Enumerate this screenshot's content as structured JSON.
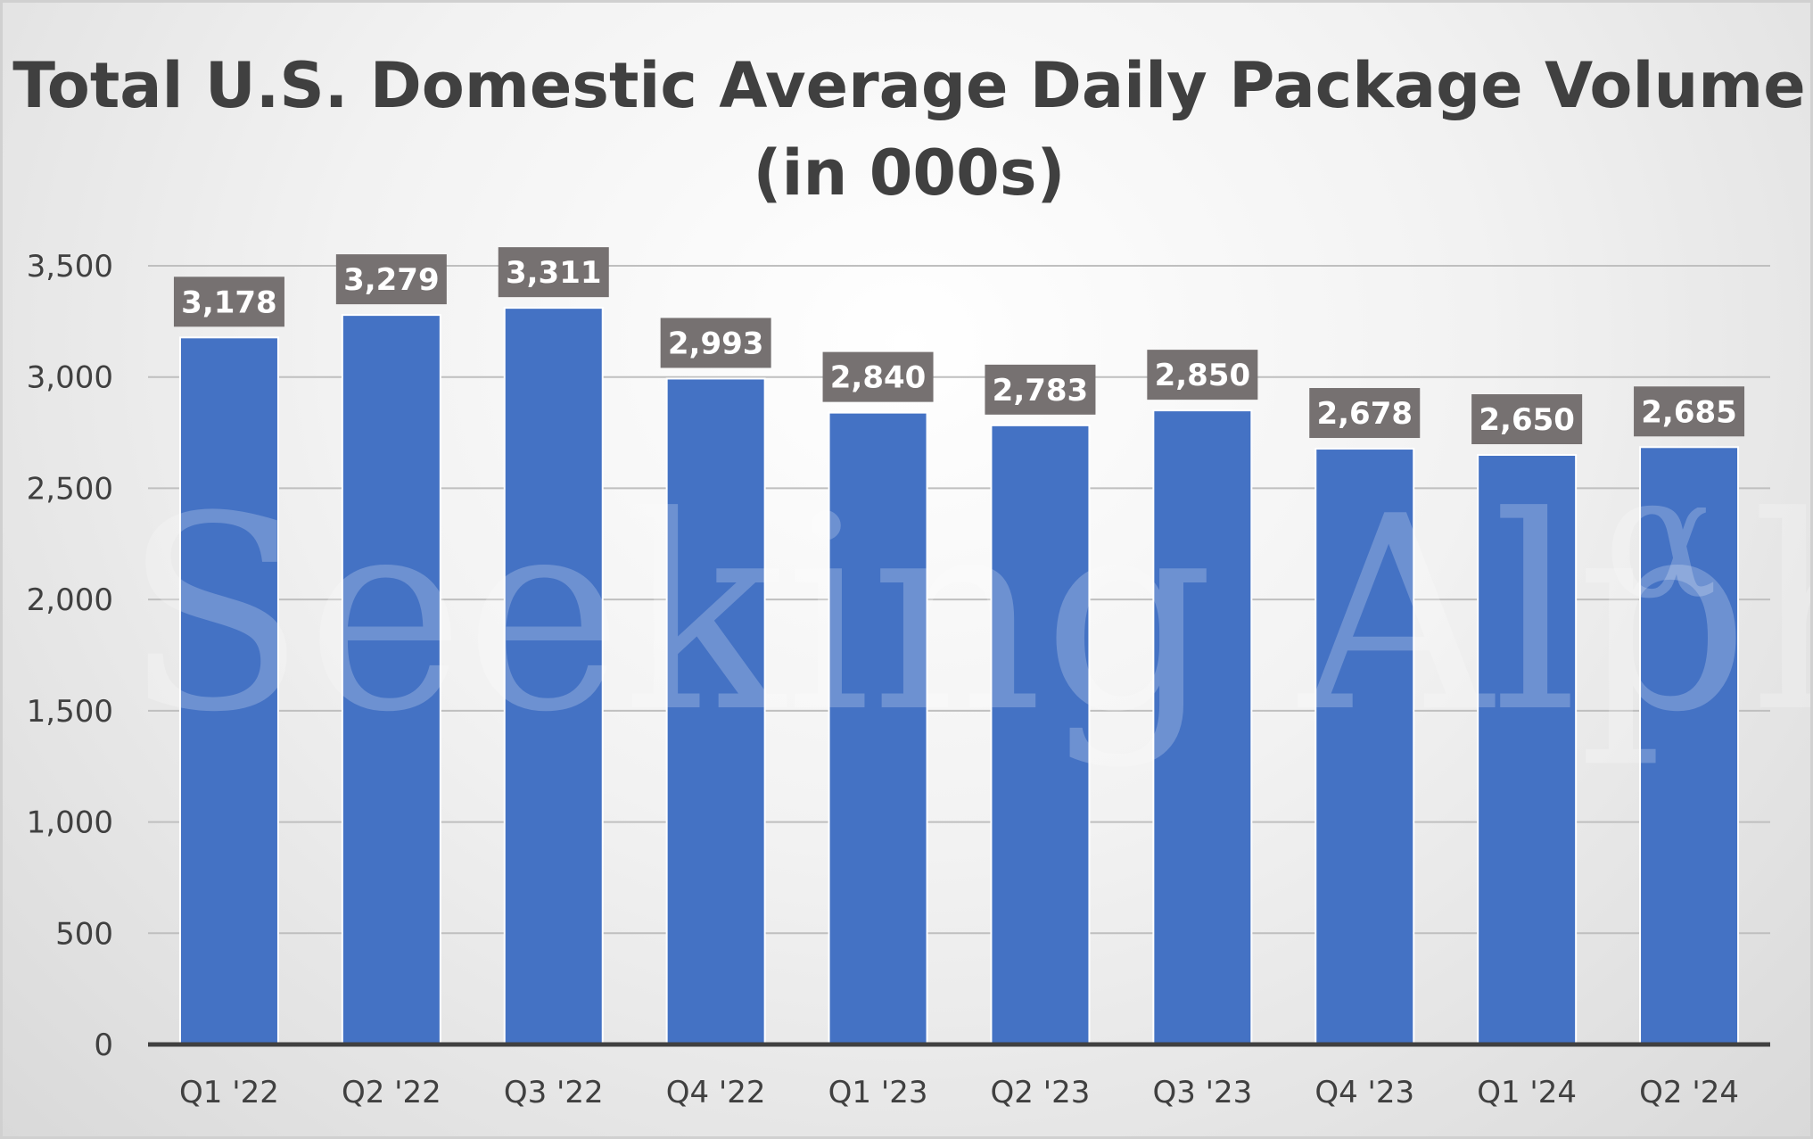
{
  "chart_data": {
    "type": "bar",
    "title": "Total U.S. Domestic Average Daily Package Volume (in 000s)",
    "categories": [
      "Q1 '22",
      "Q2 '22",
      "Q3 '22",
      "Q4 '22",
      "Q1 '23",
      "Q2 '23",
      "Q3 '23",
      "Q4 '23",
      "Q1 '24",
      "Q2 '24"
    ],
    "values": [
      3178,
      3279,
      3311,
      2993,
      2840,
      2783,
      2850,
      2678,
      2650,
      2685
    ],
    "data_labels": [
      "3,178",
      "3,279",
      "3,311",
      "2,993",
      "2,840",
      "2,783",
      "2,850",
      "2,678",
      "2,650",
      "2,685"
    ],
    "yticks": [
      "0",
      "500",
      "1,000",
      "1,500",
      "2,000",
      "2,500",
      "3,000",
      "3,500"
    ],
    "ylim": [
      0,
      3500
    ],
    "grid": true,
    "legend": "none",
    "bar_color": "#4472c4",
    "label_box_color": "#767171"
  },
  "watermark": "Seeking Alpha"
}
